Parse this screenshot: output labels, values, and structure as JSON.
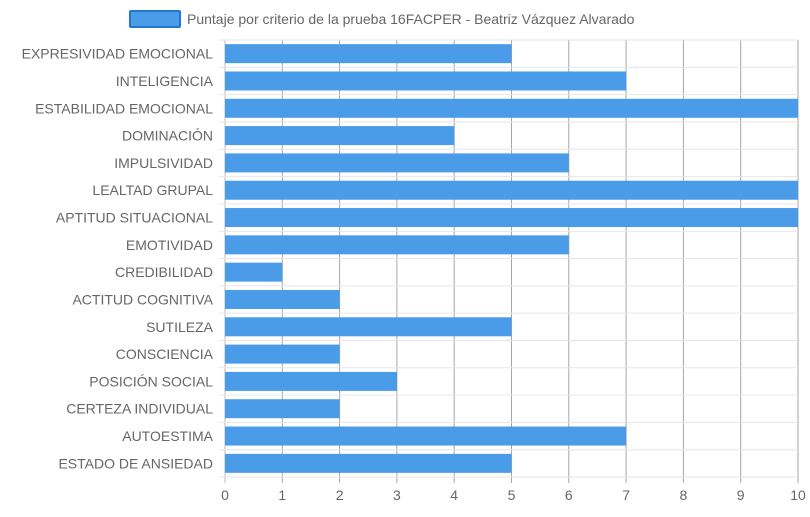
{
  "chart_data": {
    "type": "bar",
    "orientation": "horizontal",
    "legend": {
      "label": "Puntaje por criterio de la prueba 16FACPER - Beatriz Vázquez Alvarado",
      "position": "top",
      "color": "#4a9be8",
      "border_color": "#1f78d1"
    },
    "categories": [
      "EXPRESIVIDAD EMOCIONAL",
      "INTELIGENCIA",
      "ESTABILIDAD EMOCIONAL",
      "DOMINACIÓN",
      "IMPULSIVIDAD",
      "LEALTAD GRUPAL",
      "APTITUD SITUACIONAL",
      "EMOTIVIDAD",
      "CREDIBILIDAD",
      "ACTITUD COGNITIVA",
      "SUTILEZA",
      "CONSCIENCIA",
      "POSICIÓN SOCIAL",
      "CERTEZA INDIVIDUAL",
      "AUTOESTIMA",
      "ESTADO DE ANSIEDAD"
    ],
    "values": [
      5,
      7,
      10,
      4,
      6,
      10,
      10,
      6,
      1,
      2,
      5,
      2,
      3,
      2,
      7,
      5
    ],
    "xlim": [
      0,
      10
    ],
    "xticks": [
      "0",
      "1",
      "2",
      "3",
      "4",
      "5",
      "6",
      "7",
      "8",
      "9",
      "10"
    ],
    "grid": true,
    "bar_color": "#4a9be8"
  }
}
